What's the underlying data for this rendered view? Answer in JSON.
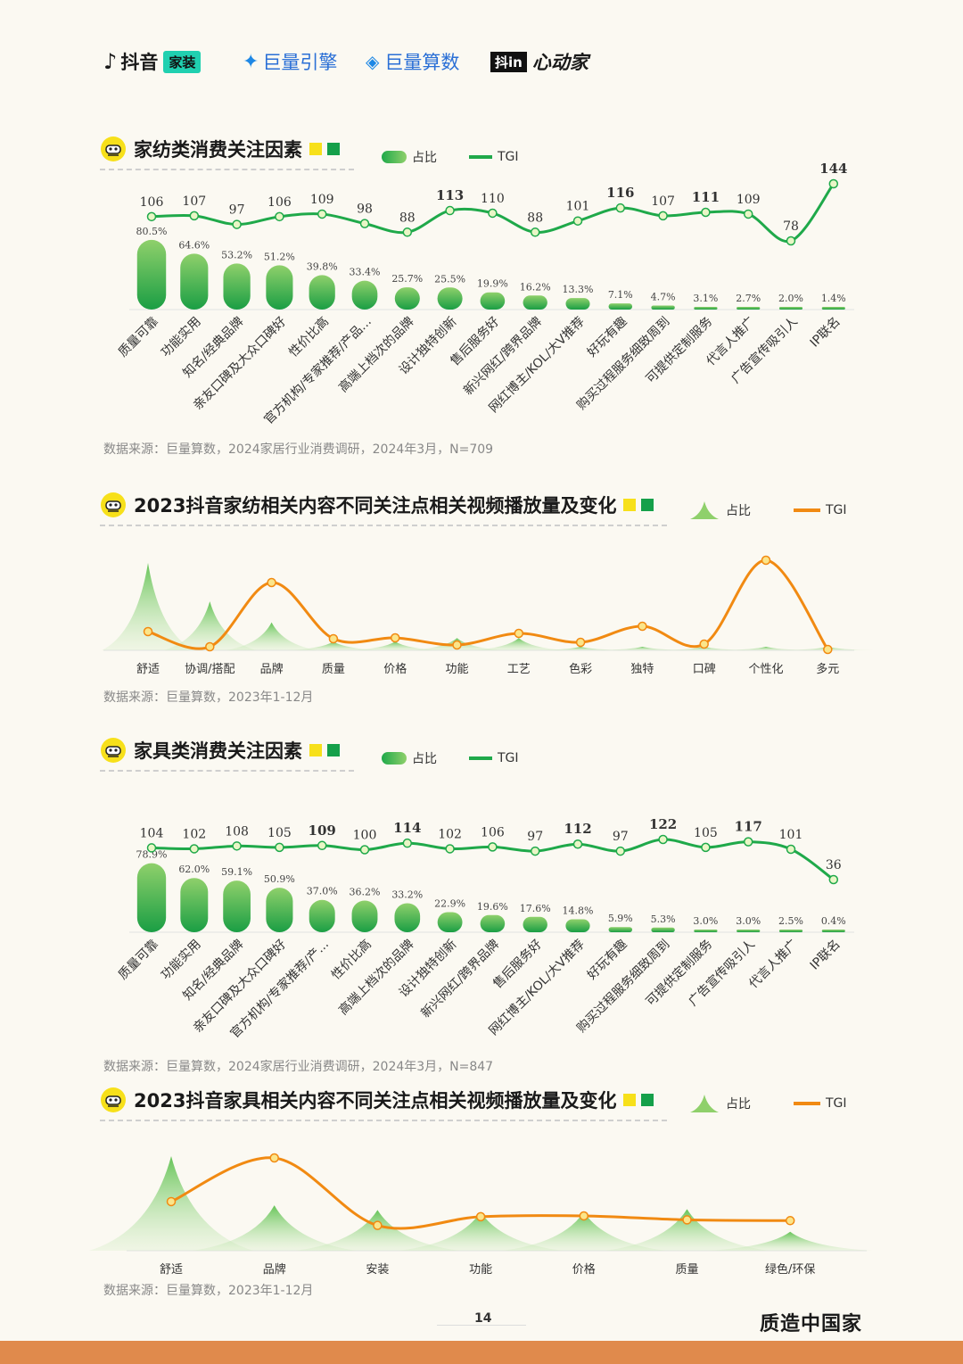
{
  "header": {
    "logos": [
      "抖音",
      "家装",
      "巨量引擎",
      "巨量算数",
      "抖in",
      "心动家"
    ]
  },
  "colors": {
    "green": "#1fa94a",
    "light_green": "#8fd06b",
    "orange": "#f18a12",
    "yellow": "#f7e01a",
    "dark_green": "#15a04a"
  },
  "chart1": {
    "title": "家纺类消费关注因素",
    "legend_bar": "占比",
    "legend_line": "TGI",
    "source": "数据来源：巨量算数，2024家居行业消费调研，2024年3月，N=709",
    "chart_data": {
      "type": "bar",
      "categories": [
        "质量可靠",
        "功能实用",
        "知名/经典品牌",
        "亲友口碑及大众口碑好",
        "性价比高",
        "官方机构/专家推荐/产品...",
        "高端上档次的品牌",
        "设计独特创新",
        "售后服务好",
        "新兴网红/跨界品牌",
        "网红博主/KOL/大V推荐",
        "好玩有趣",
        "购买过程服务细致周到",
        "可提供定制服务",
        "代言人推广",
        "广告宣传吸引人",
        "IP联名"
      ],
      "series": [
        {
          "name": "占比",
          "values": [
            80.5,
            64.6,
            53.2,
            51.2,
            39.8,
            33.4,
            25.7,
            25.5,
            19.9,
            16.2,
            13.3,
            7.1,
            4.7,
            3.1,
            2.7,
            2.0,
            1.4
          ],
          "labels": [
            "80.5%",
            "64.6%",
            "53.2%",
            "51.2%",
            "39.8%",
            "33.4%",
            "25.7%",
            "25.5%",
            "19.9%",
            "16.2%",
            "13.3%",
            "7.1%",
            "4.7%",
            "3.1%",
            "2.7%",
            "2.0%",
            "1.4%"
          ]
        },
        {
          "name": "TGI",
          "values": [
            106,
            107,
            97,
            106,
            109,
            98,
            88,
            113,
            110,
            88,
            101,
            116,
            107,
            111,
            109,
            78,
            144
          ],
          "labels": [
            "106",
            "107",
            "97",
            "106",
            "109",
            "98",
            "88",
            "113",
            "110",
            "88",
            "101",
            "116",
            "107",
            "111",
            "109",
            "78",
            "144"
          ]
        }
      ],
      "bold_tgi_index": [
        7,
        11,
        13,
        16
      ]
    }
  },
  "chart2": {
    "title": "2023抖音家纺相关内容不同关注点相关视频播放量及变化",
    "legend_area": "占比",
    "legend_line": "TGI",
    "source": "数据来源：巨量算数，2023年1-12月",
    "chart_data": {
      "type": "area",
      "categories": [
        "舒适",
        "协调/搭配",
        "品牌",
        "质量",
        "价格",
        "功能",
        "工艺",
        "色彩",
        "独特",
        "口碑",
        "个性化",
        "多元"
      ],
      "series": [
        {
          "name": "占比",
          "values": [
            1.0,
            0.56,
            0.32,
            0.1,
            0.1,
            0.14,
            0.14,
            0.04,
            0.03,
            0.02,
            0.02,
            0.01
          ]
        },
        {
          "name": "TGI",
          "values": [
            0.2,
            0.03,
            0.75,
            0.12,
            0.13,
            0.05,
            0.18,
            0.08,
            0.26,
            0.06,
            1.0,
            0.0
          ]
        }
      ]
    }
  },
  "chart3": {
    "title": "家具类消费关注因素",
    "legend_bar": "占比",
    "legend_line": "TGI",
    "source": "数据来源：巨量算数，2024家居行业消费调研，2024年3月，N=847",
    "chart_data": {
      "type": "bar",
      "categories": [
        "质量可靠",
        "功能实用",
        "知名/经典品牌",
        "亲友口碑及大众口碑好",
        "官方机构/专家推荐/产...",
        "性价比高",
        "高端上档次的品牌",
        "设计独特创新",
        "新兴网红/跨界品牌",
        "售后服务好",
        "网红博主/KOL/大V推荐",
        "好玩有趣",
        "购买过程服务细致周到",
        "可提供定制服务",
        "广告宣传吸引人",
        "代言人推广",
        "IP联名"
      ],
      "series": [
        {
          "name": "占比",
          "values": [
            78.9,
            62.0,
            59.1,
            50.9,
            37.0,
            36.2,
            33.2,
            22.9,
            19.6,
            17.6,
            14.8,
            5.9,
            5.3,
            3.0,
            3.0,
            2.5,
            0.4
          ],
          "labels": [
            "78.9%",
            "62.0%",
            "59.1%",
            "50.9%",
            "37.0%",
            "36.2%",
            "33.2%",
            "22.9%",
            "19.6%",
            "17.6%",
            "14.8%",
            "5.9%",
            "5.3%",
            "3.0%",
            "3.0%",
            "2.5%",
            "0.4%"
          ]
        },
        {
          "name": "TGI",
          "values": [
            104,
            102,
            108,
            105,
            109,
            100,
            114,
            102,
            106,
            97,
            112,
            97,
            122,
            105,
            117,
            101,
            36
          ],
          "labels": [
            "104",
            "102",
            "108",
            "105",
            "109",
            "100",
            "114",
            "102",
            "106",
            "97",
            "112",
            "97",
            "122",
            "105",
            "117",
            "101",
            "36"
          ]
        }
      ],
      "bold_tgi_index": [
        4,
        6,
        10,
        12,
        14
      ]
    }
  },
  "chart4": {
    "title": "2023抖音家具相关内容不同关注点相关视频播放量及变化",
    "legend_area": "占比",
    "legend_line": "TGI",
    "source": "数据来源：巨量算数，2023年1-12月",
    "chart_data": {
      "type": "area",
      "categories": [
        "舒适",
        "品牌",
        "安装",
        "功能",
        "价格",
        "质量",
        "绿色/环保"
      ],
      "series": [
        {
          "name": "占比",
          "values": [
            1.0,
            0.48,
            0.43,
            0.41,
            0.41,
            0.44,
            0.2
          ]
        },
        {
          "name": "TGI",
          "values": [
            0.45,
            1.0,
            0.15,
            0.26,
            0.27,
            0.22,
            0.21
          ]
        }
      ]
    }
  },
  "footer": {
    "page_number": "14",
    "brand": "质造中国家"
  }
}
